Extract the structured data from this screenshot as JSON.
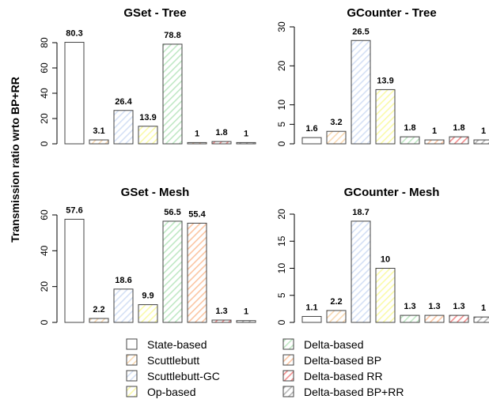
{
  "ylabel": "Transmission ratio wrto BP+RR",
  "series_styles": [
    {
      "name": "State-based",
      "color": "#ffffff",
      "hatch": "none"
    },
    {
      "name": "Scuttlebutt",
      "color": "#f9d9b3",
      "hatch": "up"
    },
    {
      "name": "Scuttlebutt-GC",
      "color": "#d4e0f5",
      "hatch": "up"
    },
    {
      "name": "Op-based",
      "color": "#fafaa8",
      "hatch": "up"
    },
    {
      "name": "Delta-based",
      "color": "#bfe8c4",
      "hatch": "up"
    },
    {
      "name": "Delta-based BP",
      "color": "#fbc5a2",
      "hatch": "up"
    },
    {
      "name": "Delta-based RR",
      "color": "#f18d8d",
      "hatch": "up"
    },
    {
      "name": "Delta-based BP+RR",
      "color": "#b5b5b5",
      "hatch": "up"
    }
  ],
  "legend": {
    "placement": "bottom",
    "column1": [
      "State-based",
      "Scuttlebutt",
      "Scuttlebutt-GC",
      "Op-based"
    ],
    "column2": [
      "Delta-based",
      "Delta-based BP",
      "Delta-based RR",
      "Delta-based BP+RR"
    ]
  },
  "chart_data": [
    {
      "type": "bar",
      "title": "GSet - Tree",
      "categories": [
        "State-based",
        "Scuttlebutt",
        "Scuttlebutt-GC",
        "Op-based",
        "Delta-based",
        "Delta-based BP",
        "Delta-based RR",
        "Delta-based BP+RR"
      ],
      "values": [
        80.3,
        3.1,
        26.4,
        13.9,
        78.8,
        1,
        1.8,
        1
      ],
      "value_labels": [
        "80.3",
        "3.1",
        "26.4",
        "13.9",
        "78.8",
        "1",
        "1.8",
        "1"
      ],
      "ylim": [
        0,
        80
      ],
      "yticks": [
        0,
        20,
        40,
        60,
        80
      ]
    },
    {
      "type": "bar",
      "title": "GCounter - Tree",
      "categories": [
        "State-based",
        "Scuttlebutt",
        "Scuttlebutt-GC",
        "Op-based",
        "Delta-based",
        "Delta-based BP",
        "Delta-based RR",
        "Delta-based BP+RR"
      ],
      "values": [
        1.6,
        3.2,
        26.5,
        13.9,
        1.8,
        1,
        1.8,
        1
      ],
      "value_labels": [
        "1.6",
        "3.2",
        "26.5",
        "13.9",
        "1.8",
        "1",
        "1.8",
        "1"
      ],
      "ylim": [
        0,
        30
      ],
      "yticks": [
        0,
        5,
        10,
        20,
        30
      ]
    },
    {
      "type": "bar",
      "title": "GSet - Mesh",
      "categories": [
        "State-based",
        "Scuttlebutt",
        "Scuttlebutt-GC",
        "Op-based",
        "Delta-based",
        "Delta-based BP",
        "Delta-based RR",
        "Delta-based BP+RR"
      ],
      "values": [
        57.6,
        2.2,
        18.6,
        9.9,
        56.5,
        55.4,
        1.3,
        1
      ],
      "value_labels": [
        "57.6",
        "2.2",
        "18.6",
        "9.9",
        "56.5",
        "55.4",
        "1.3",
        "1"
      ],
      "ylim": [
        0,
        60
      ],
      "yticks": [
        0,
        20,
        40,
        60
      ]
    },
    {
      "type": "bar",
      "title": "GCounter - Mesh",
      "categories": [
        "State-based",
        "Scuttlebutt",
        "Scuttlebutt-GC",
        "Op-based",
        "Delta-based",
        "Delta-based BP",
        "Delta-based RR",
        "Delta-based BP+RR"
      ],
      "values": [
        1.1,
        2.2,
        18.7,
        10,
        1.3,
        1.3,
        1.3,
        1
      ],
      "value_labels": [
        "1.1",
        "2.2",
        "18.7",
        "10",
        "1.3",
        "1.3",
        "1.3",
        "1"
      ],
      "ylim": [
        0,
        20
      ],
      "yticks": [
        0,
        5,
        10,
        15,
        20
      ]
    }
  ]
}
